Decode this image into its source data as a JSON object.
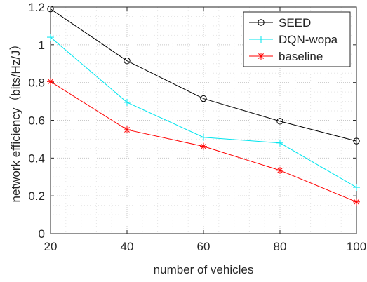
{
  "chart_data": {
    "type": "line",
    "title": "",
    "xlabel": "number of vehicles",
    "ylabel": "network efficiency（bits/Hz/J）",
    "x": [
      20,
      40,
      60,
      80,
      100
    ],
    "xlim": [
      20,
      100
    ],
    "ylim": [
      0,
      1.2
    ],
    "xticks": [
      "20",
      "40",
      "60",
      "80",
      "100"
    ],
    "yticks": [
      "0",
      "0.2",
      "0.4",
      "0.6",
      "0.8",
      "1",
      "1.2"
    ],
    "grid": "on, dotted, major and minor",
    "legend_position": "top-right",
    "series": [
      {
        "name": "SEED",
        "color": "#000000",
        "marker": "circle",
        "values": [
          1.19,
          0.915,
          0.715,
          0.595,
          0.49
        ]
      },
      {
        "name": "DQN-wopa",
        "color": "#00e5ee",
        "marker": "plus",
        "values": [
          1.04,
          0.695,
          0.51,
          0.48,
          0.245
        ]
      },
      {
        "name": "baseline",
        "color": "#ff0000",
        "marker": "asterisk",
        "values": [
          0.805,
          0.55,
          0.462,
          0.335,
          0.168
        ]
      }
    ]
  }
}
